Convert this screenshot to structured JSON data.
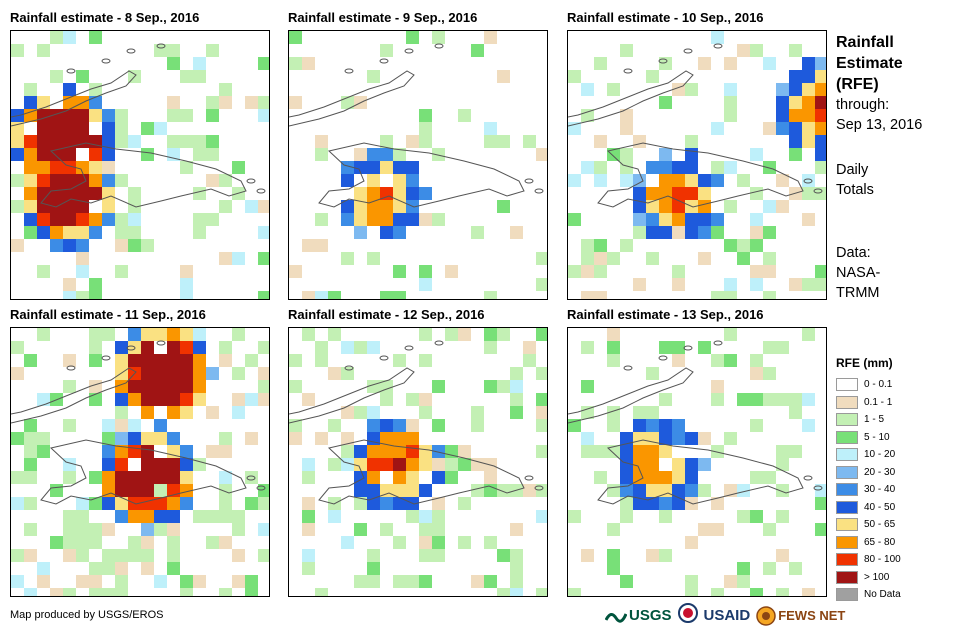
{
  "panels": [
    {
      "title": "Rainfall estimate - 8 Sep., 2016"
    },
    {
      "title": "Rainfall estimate - 9 Sep., 2016"
    },
    {
      "title": "Rainfall estimate - 10 Sep., 2016"
    },
    {
      "title": "Rainfall estimate - 11 Sep., 2016"
    },
    {
      "title": "Rainfall estimate - 12 Sep., 2016"
    },
    {
      "title": "Rainfall estimate - 13 Sep., 2016"
    }
  ],
  "side": {
    "title_lines": [
      "Rainfall",
      "Estimate",
      "(RFE)"
    ],
    "through_label": "through:",
    "through_date": "Sep 13, 2016",
    "totals_lines": [
      "Daily",
      "Totals"
    ],
    "data_lines": [
      "Data:",
      "NASA-",
      "TRMM"
    ]
  },
  "legend": {
    "title": "RFE (mm)",
    "items": [
      {
        "label": "0 - 0.1",
        "color": "#ffffff"
      },
      {
        "label": "0.1 - 1",
        "color": "#f0dcbe"
      },
      {
        "label": "1 - 5",
        "color": "#c3f0b4"
      },
      {
        "label": "5 - 10",
        "color": "#78e078"
      },
      {
        "label": "10 - 20",
        "color": "#bef0fa"
      },
      {
        "label": "20 - 30",
        "color": "#7db9f0"
      },
      {
        "label": "30 - 40",
        "color": "#3c8ce6"
      },
      {
        "label": "40 - 50",
        "color": "#1e5adc"
      },
      {
        "label": "50 - 65",
        "color": "#fae182"
      },
      {
        "label": "65 - 80",
        "color": "#fa9600"
      },
      {
        "label": "80 - 100",
        "color": "#f03200"
      },
      {
        "label": "> 100",
        "color": "#a01414"
      },
      {
        "label": "No Data",
        "color": "#a0a0a0"
      }
    ]
  },
  "footer": {
    "credit": "Map produced by USGS/EROS",
    "logos": [
      "USGS",
      "USAID",
      "FEWS NET"
    ]
  }
}
